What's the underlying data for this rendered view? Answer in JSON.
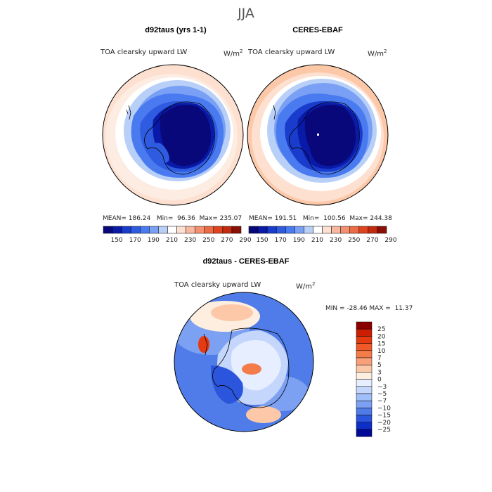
{
  "season": "JJA",
  "panels": [
    {
      "title": "d92taus (yrs 1-1)",
      "variable": "TOA clearsky upward LW",
      "units_base": "W/m",
      "units_exp": "2",
      "stats": {
        "mean_label": "MEAN=",
        "mean": "186.24",
        "min_label": "Min=",
        "min": "96.36",
        "max_label": "Max=",
        "max": "235.07"
      }
    },
    {
      "title": "CERES-EBAF",
      "variable": "TOA clearsky upward LW",
      "units_base": "W/m",
      "units_exp": "2",
      "stats": {
        "mean_label": "MEAN=",
        "mean": "191.51",
        "min_label": "Min=",
        "min": "100.56",
        "max_label": "Max=",
        "max": "244.38"
      }
    }
  ],
  "colorbar": {
    "colors": [
      "#08087a",
      "#0a1aa8",
      "#1a3ccc",
      "#2f5be0",
      "#4a7af0",
      "#7aa0f5",
      "#b8cff8",
      "#ffffff",
      "#fde0d0",
      "#f8b8a0",
      "#f49070",
      "#ec6a45",
      "#e0441f",
      "#c42a0e",
      "#8a0f05"
    ],
    "labels": [
      "150",
      "170",
      "190",
      "210",
      "230",
      "250",
      "270",
      "290"
    ]
  },
  "diff": {
    "title": "d92taus - CERES-EBAF",
    "variable": "TOA clearsky upward LW",
    "units_base": "W/m",
    "units_exp": "2",
    "min_label": "MIN =",
    "min": "-28.46",
    "max_label": "MAX =",
    "max": "11.37",
    "colors": [
      "#8a0000",
      "#cc1e00",
      "#e63a10",
      "#f05a28",
      "#f47c4a",
      "#f9a07a",
      "#fcc8a8",
      "#fdeee0",
      "#e6eeff",
      "#c4d6fb",
      "#a0bef8",
      "#7ca0f2",
      "#4f7ce8",
      "#2a55dc",
      "#0e2ec8",
      "#000a96"
    ],
    "labels": [
      "25",
      "20",
      "15",
      "10",
      "7",
      "5",
      "3",
      "0",
      "−3",
      "−5",
      "−7",
      "−10",
      "−15",
      "−20",
      "−25"
    ]
  }
}
